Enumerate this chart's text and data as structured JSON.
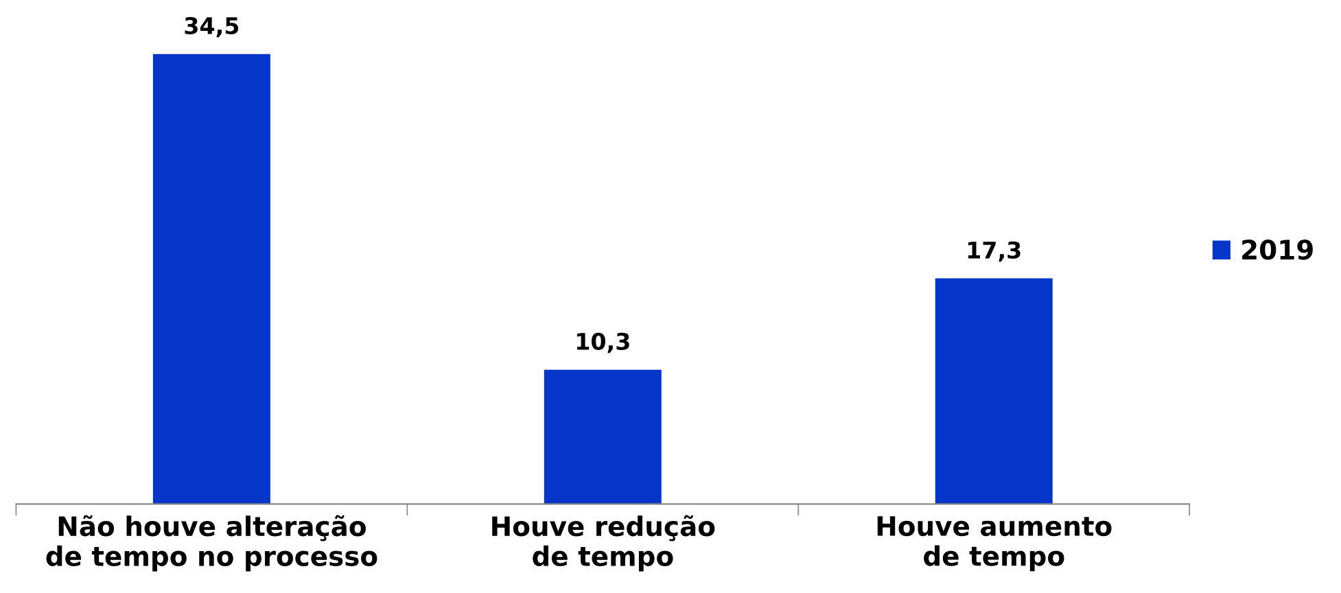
{
  "chart_data": {
    "type": "bar",
    "categories": [
      "Não houve alteração\nde tempo no processo",
      "Houve redução\nde tempo",
      "Houve aumento\nde tempo"
    ],
    "series": [
      {
        "name": "2019",
        "color": "#0635c9",
        "values": [
          34.5,
          10.3,
          17.3
        ],
        "value_labels": [
          "34,5",
          "10,3",
          "17,3"
        ]
      }
    ],
    "legend": "right",
    "grid": false
  }
}
